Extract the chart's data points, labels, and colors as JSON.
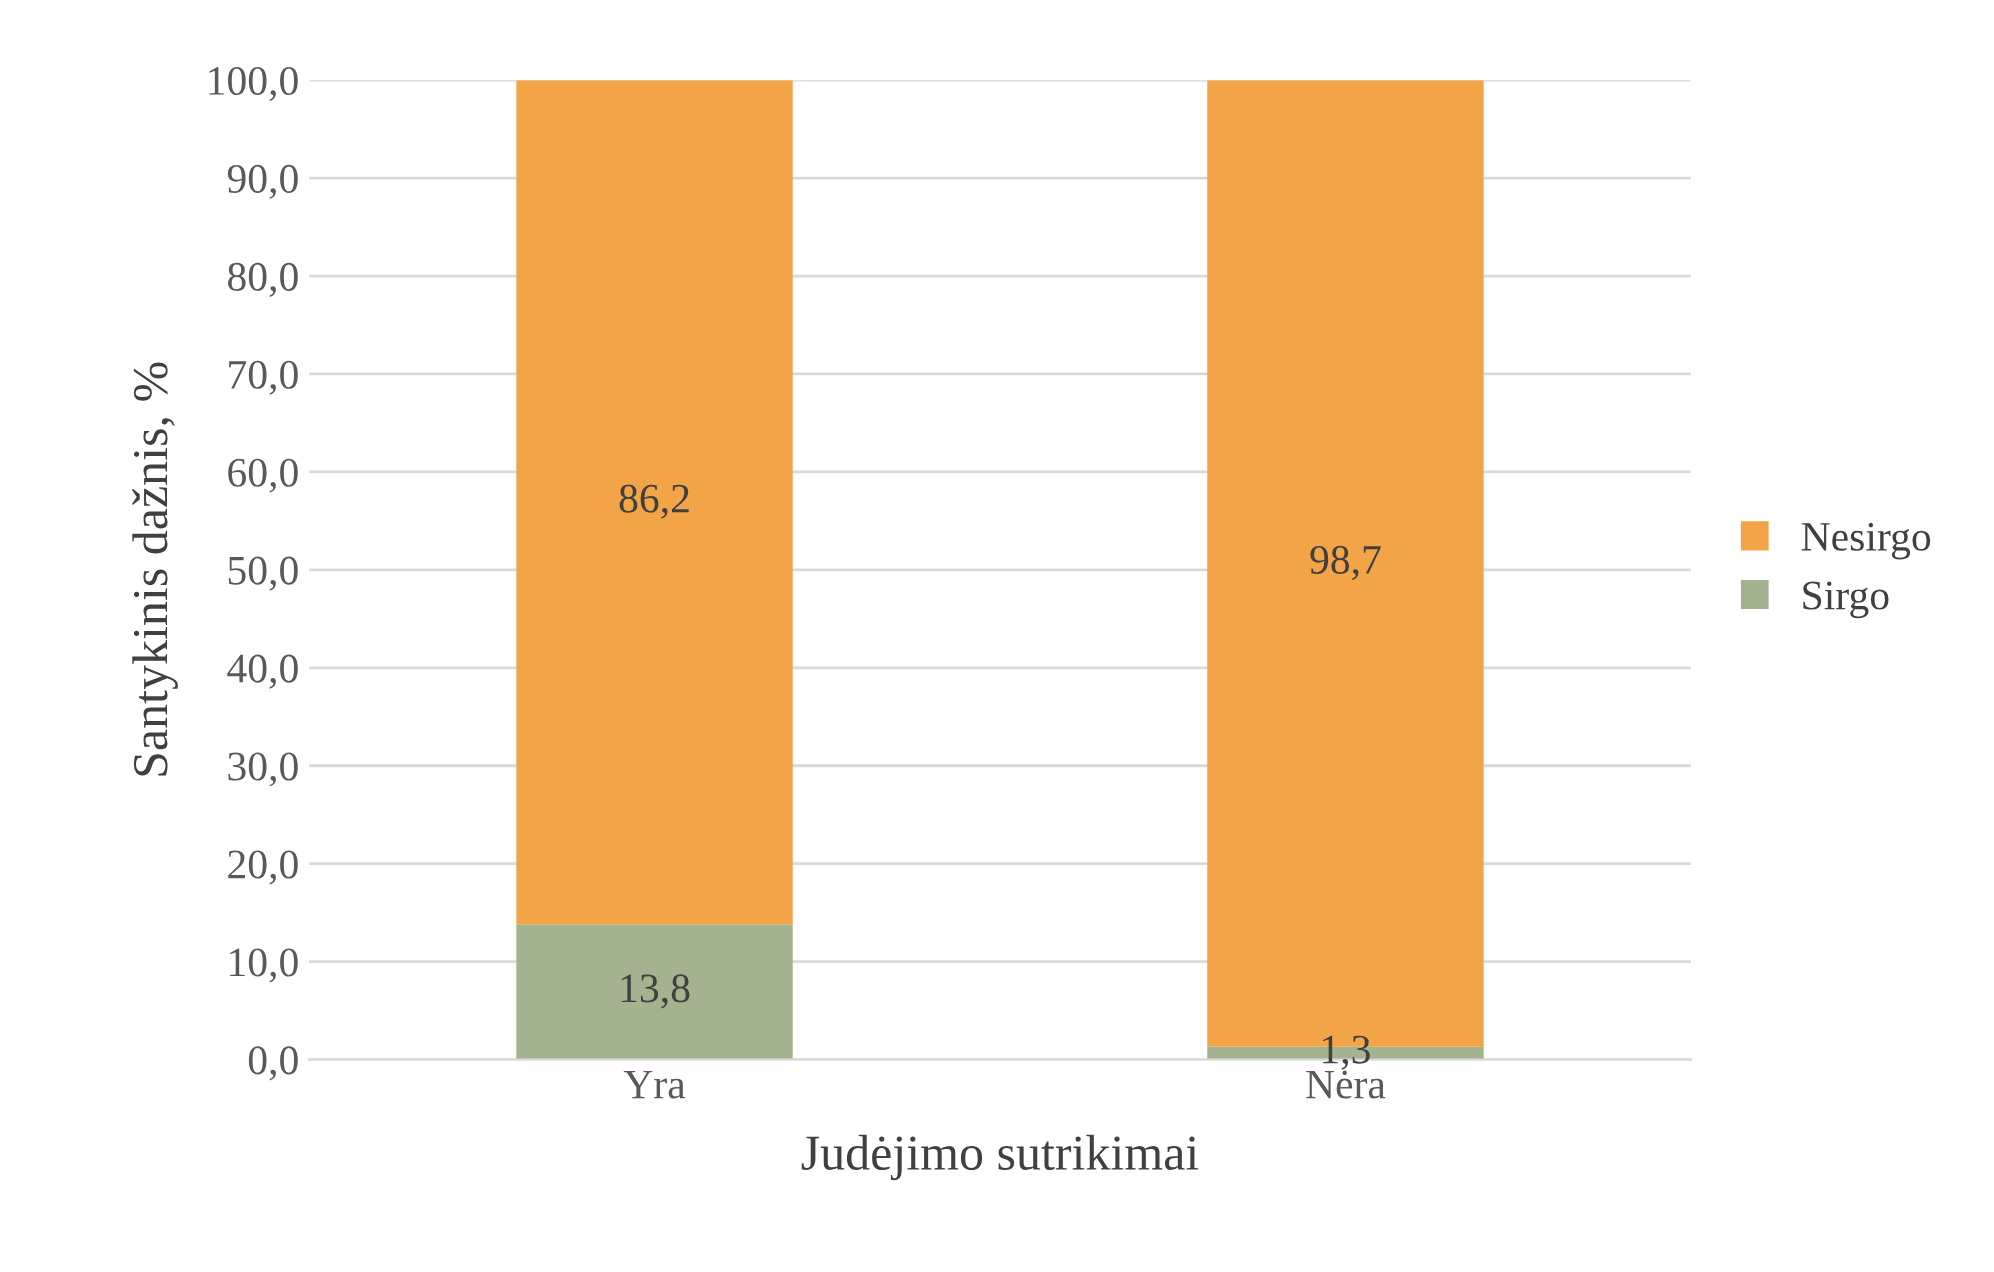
{
  "chart_data": {
    "type": "bar",
    "stacked": true,
    "xlabel": "Judėjimo sutrikimai",
    "ylabel": "Santykinis dažnis, %",
    "categories": [
      "Yra",
      "Nėra"
    ],
    "series": [
      {
        "name": "Sirgo",
        "color": "#a3b38f",
        "values": [
          13.8,
          1.3
        ],
        "value_labels": [
          "13,8",
          "1,3"
        ]
      },
      {
        "name": "Nesirgo",
        "color": "#f2a447",
        "values": [
          86.2,
          98.7
        ],
        "value_labels": [
          "86,2",
          "98,7"
        ]
      }
    ],
    "ylim": [
      0,
      100
    ],
    "yticks": [
      {
        "value": 0,
        "label": "0,0"
      },
      {
        "value": 10,
        "label": "10,0"
      },
      {
        "value": 20,
        "label": "20,0"
      },
      {
        "value": 30,
        "label": "30,0"
      },
      {
        "value": 40,
        "label": "40,0"
      },
      {
        "value": 50,
        "label": "50,0"
      },
      {
        "value": 60,
        "label": "60,0"
      },
      {
        "value": 70,
        "label": "70,0"
      },
      {
        "value": 80,
        "label": "80,0"
      },
      {
        "value": 90,
        "label": "90,0"
      },
      {
        "value": 100,
        "label": "100,0"
      }
    ],
    "grid": "y",
    "legend": "right"
  }
}
